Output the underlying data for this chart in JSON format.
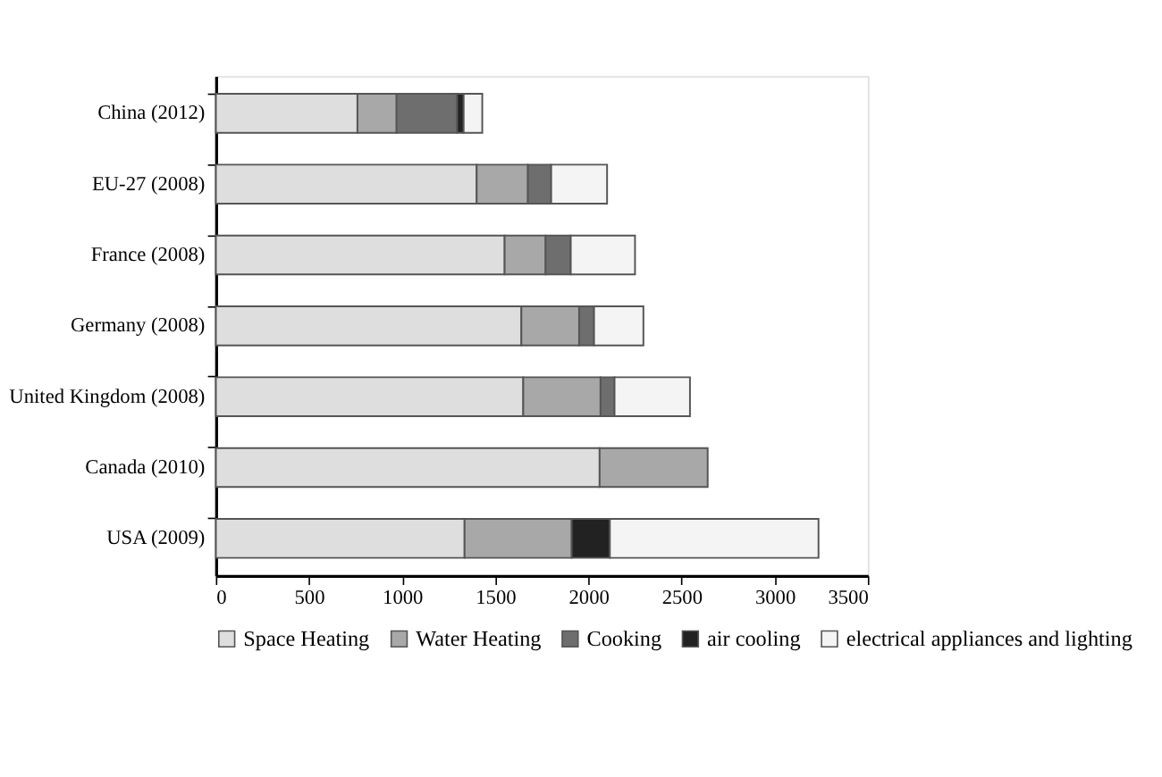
{
  "chart_data": {
    "type": "bar",
    "orientation": "horizontal",
    "stacked": true,
    "categories": [
      "China (2012)",
      "EU-27 (2008)",
      "France (2008)",
      "Germany (2008)",
      "United Kingdom (2008)",
      "Canada (2010)",
      "USA (2009)"
    ],
    "series": [
      {
        "name": "Space Heating",
        "color": "#dedede",
        "values": [
          760,
          1400,
          1550,
          1640,
          1650,
          2060,
          1335
        ]
      },
      {
        "name": "Water Heating",
        "color": "#a8a8a8",
        "values": [
          210,
          275,
          220,
          310,
          415,
          580,
          575
        ]
      },
      {
        "name": "Cooking",
        "color": "#6e6e6e",
        "values": [
          325,
          125,
          135,
          80,
          75,
          null,
          null
        ]
      },
      {
        "name": "air cooling",
        "color": "#222222",
        "values": [
          35,
          null,
          null,
          null,
          null,
          null,
          205
        ]
      },
      {
        "name": "electrical appliances and lighting",
        "color": "#f4f4f4",
        "values": [
          100,
          300,
          345,
          265,
          405,
          null,
          1120
        ]
      }
    ],
    "xlim": [
      0,
      3500
    ],
    "xticks": [
      0,
      500,
      1000,
      1500,
      2000,
      2500,
      3000,
      3500
    ],
    "grid": false,
    "legend": "bottom"
  }
}
